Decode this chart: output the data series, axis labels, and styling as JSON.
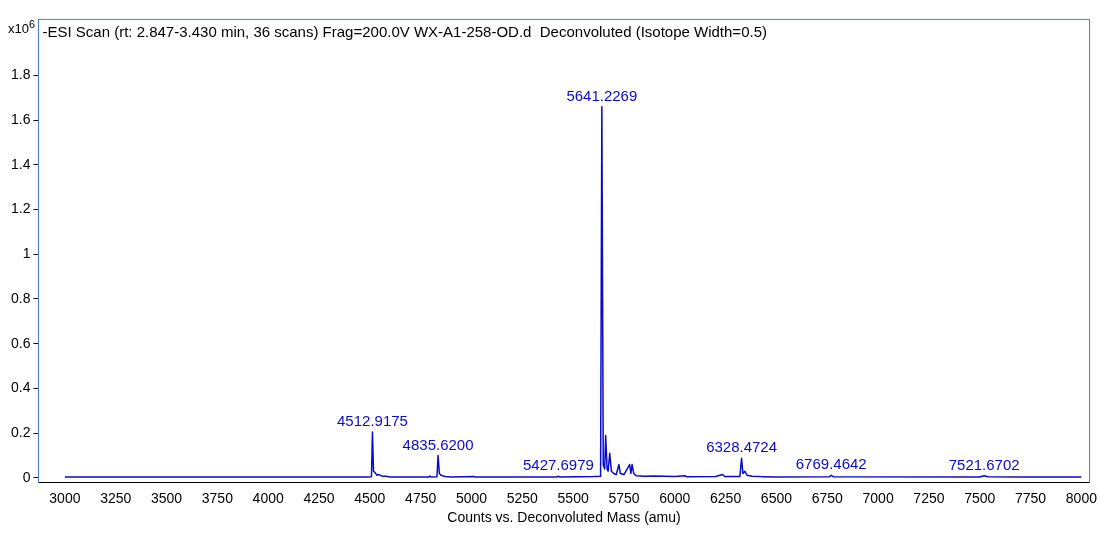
{
  "chart_data": {
    "type": "line",
    "title": "-ESI Scan (rt: 2.847-3.430 min, 36 scans) Frag=200.0V WX-A1-258-OD.d  Deconvoluted (Isotope Width=0.5)",
    "xlabel": "Counts vs. Deconvoluted Mass (amu)",
    "ylabel": "x10$^{6}$",
    "series": [
      {
        "color": "#0a0acc",
        "x": [
          3000,
          4490,
          4508,
          4512.9,
          4518,
          4525,
          4535,
          4545,
          4560,
          4580,
          4600,
          4790,
          4795,
          4800,
          4830,
          4835.6,
          4842,
          4850,
          4870,
          4900,
          5010,
          5020,
          5420,
          5427.7,
          5435,
          5600,
          5635,
          5641.2,
          5648,
          5655,
          5660,
          5667,
          5672,
          5680,
          5688,
          5700,
          5712,
          5725,
          5732,
          5750,
          5778,
          5784,
          5790,
          5798,
          5810,
          5850,
          5900,
          5950,
          6000,
          6050,
          6060,
          6200,
          6235,
          6245,
          6320,
          6328.5,
          6335,
          6345,
          6355,
          6380,
          6420,
          6500,
          6760,
          6769.5,
          6780,
          7500,
          7521.7,
          7540,
          8000
        ],
        "values": [
          0.004,
          0.004,
          0.005,
          0.205,
          0.03,
          0.025,
          0.012,
          0.015,
          0.008,
          0.007,
          0.004,
          0.004,
          0.008,
          0.004,
          0.005,
          0.1,
          0.02,
          0.012,
          0.006,
          0.004,
          0.006,
          0.004,
          0.004,
          0.008,
          0.004,
          0.006,
          0.008,
          1.66,
          0.06,
          0.04,
          0.19,
          0.04,
          0.03,
          0.11,
          0.03,
          0.02,
          0.015,
          0.06,
          0.02,
          0.015,
          0.06,
          0.02,
          0.06,
          0.02,
          0.01,
          0.008,
          0.009,
          0.008,
          0.006,
          0.01,
          0.005,
          0.006,
          0.015,
          0.006,
          0.006,
          0.088,
          0.02,
          0.03,
          0.012,
          0.008,
          0.006,
          0.004,
          0.005,
          0.012,
          0.005,
          0.004,
          0.01,
          0.005,
          0.004
        ]
      }
    ],
    "annotations": [
      {
        "text": "4512.9175",
        "x": 4512.9,
        "y": 0.205
      },
      {
        "text": "4835.6200",
        "x": 4835.6,
        "y": 0.1
      },
      {
        "text": "5427.6979",
        "x": 5427.7,
        "y": 0.008
      },
      {
        "text": "5641.2269",
        "x": 5641.2,
        "y": 1.66
      },
      {
        "text": "6328.4724",
        "x": 6328.5,
        "y": 0.088
      },
      {
        "text": "6769.4642",
        "x": 6769.5,
        "y": 0.012
      },
      {
        "text": "7521.6702",
        "x": 7521.7,
        "y": 0.01
      }
    ],
    "xlim": [
      2870,
      8040
    ],
    "ylim": [
      -0.02,
      2.05
    ],
    "xticks": [
      3000,
      3250,
      3500,
      3750,
      4000,
      4250,
      4500,
      4750,
      5000,
      5250,
      5500,
      5750,
      6000,
      6250,
      6500,
      6750,
      7000,
      7250,
      7500,
      7750,
      8000
    ],
    "yticks": [
      0,
      0.2,
      0.4,
      0.6,
      0.8,
      1,
      1.2,
      1.4,
      1.6,
      1.8
    ],
    "grid": false,
    "legend": false
  }
}
